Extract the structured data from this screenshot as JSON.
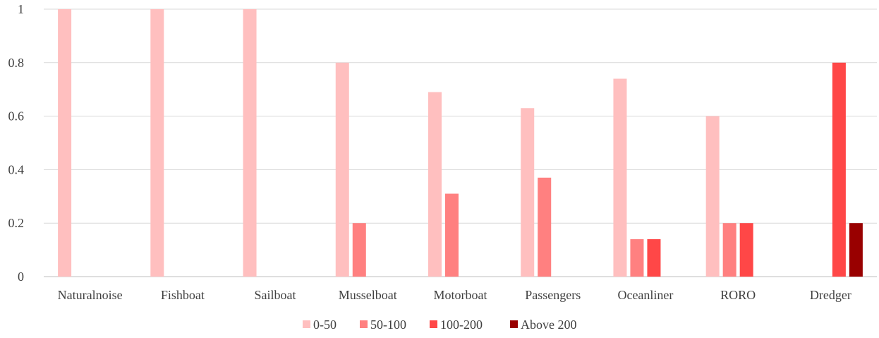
{
  "chart_data": {
    "type": "bar",
    "title": "",
    "xlabel": "",
    "ylabel": "",
    "ylim": [
      0,
      1
    ],
    "yticks": [
      "0",
      "0.2",
      "0.4",
      "0.6",
      "0.8",
      "1"
    ],
    "grid": true,
    "legend_position": "bottom",
    "categories": [
      "Naturalnoise",
      "Fishboat",
      "Sailboat",
      "Musselboat",
      "Motorboat",
      "Passengers",
      "Oceanliner",
      "RORO",
      "Dredger"
    ],
    "series": [
      {
        "name": "0-50",
        "color": "#ffbfbf",
        "values": [
          1,
          1,
          1,
          0.8,
          0.69,
          0.63,
          0.74,
          0.6,
          0
        ]
      },
      {
        "name": "50-100",
        "color": "#ff8080",
        "values": [
          0,
          0,
          0,
          0.2,
          0.31,
          0.37,
          0.14,
          0.2,
          0
        ]
      },
      {
        "name": "100-200",
        "color": "#ff4747",
        "values": [
          0,
          0,
          0,
          0,
          0,
          0,
          0.14,
          0.2,
          0.8
        ]
      },
      {
        "name": "Above 200",
        "color": "#990000",
        "values": [
          0,
          0,
          0,
          0,
          0,
          0,
          0,
          0,
          0.2
        ]
      }
    ]
  }
}
